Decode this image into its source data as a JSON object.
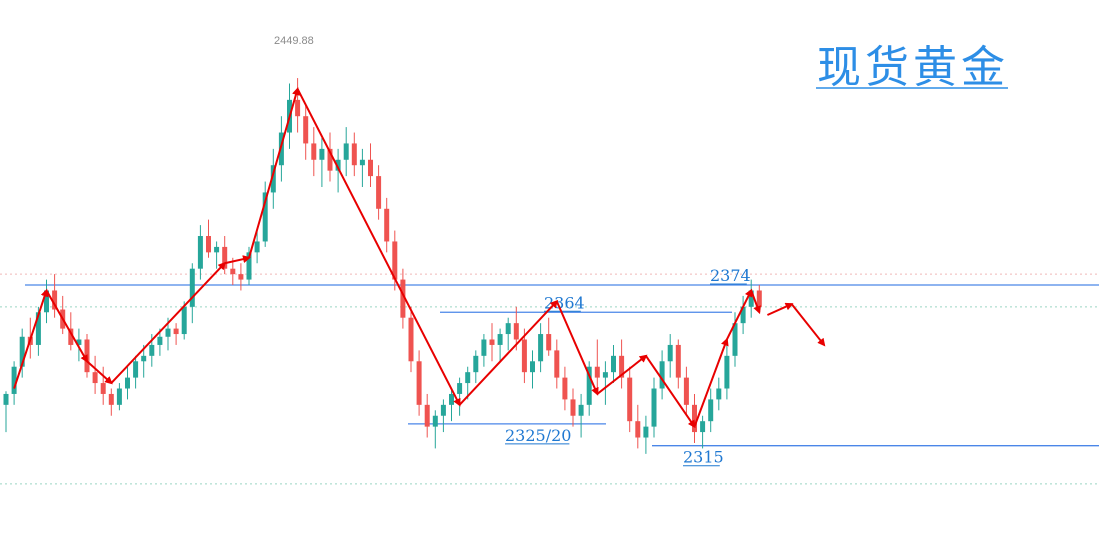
{
  "chart_data": {
    "type": "candlestick",
    "title": "现货黄金",
    "peak_label": "2449.88",
    "ylim": [
      2280,
      2475
    ],
    "colors": {
      "up": "#26a69a",
      "down": "#ef5350",
      "level_line": "#4a86e8",
      "level_text": "#1f78d1",
      "arrow": "#e80000",
      "title": "#2d8ee6",
      "grid_dotted": "#9ad5c4",
      "grid_red_dotted": "#f0b8b8"
    },
    "levels": [
      {
        "label": "2374",
        "value": 2374
      },
      {
        "label": "2364",
        "value": 2364
      },
      {
        "label": "2325/20",
        "value": 2323
      },
      {
        "label": "2315",
        "value": 2315
      }
    ],
    "dotted_lines": [
      2378,
      2366,
      2301
    ],
    "candles": [
      [
        2330,
        2335,
        2320,
        2334
      ],
      [
        2334,
        2346,
        2330,
        2344
      ],
      [
        2344,
        2358,
        2340,
        2355
      ],
      [
        2355,
        2362,
        2347,
        2352
      ],
      [
        2352,
        2366,
        2348,
        2364
      ],
      [
        2364,
        2376,
        2360,
        2372
      ],
      [
        2372,
        2378,
        2362,
        2365
      ],
      [
        2365,
        2370,
        2356,
        2358
      ],
      [
        2358,
        2364,
        2350,
        2352
      ],
      [
        2352,
        2358,
        2346,
        2354
      ],
      [
        2354,
        2356,
        2340,
        2342
      ],
      [
        2342,
        2348,
        2334,
        2338
      ],
      [
        2338,
        2344,
        2330,
        2334
      ],
      [
        2334,
        2336,
        2326,
        2330
      ],
      [
        2330,
        2338,
        2328,
        2336
      ],
      [
        2336,
        2344,
        2332,
        2340
      ],
      [
        2340,
        2348,
        2336,
        2346
      ],
      [
        2346,
        2352,
        2340,
        2348
      ],
      [
        2348,
        2356,
        2344,
        2352
      ],
      [
        2352,
        2358,
        2348,
        2355
      ],
      [
        2355,
        2362,
        2350,
        2358
      ],
      [
        2358,
        2360,
        2352,
        2356
      ],
      [
        2356,
        2368,
        2354,
        2366
      ],
      [
        2366,
        2382,
        2360,
        2380
      ],
      [
        2380,
        2396,
        2376,
        2392
      ],
      [
        2392,
        2398,
        2384,
        2386
      ],
      [
        2386,
        2390,
        2380,
        2388
      ],
      [
        2388,
        2392,
        2378,
        2380
      ],
      [
        2380,
        2384,
        2374,
        2378
      ],
      [
        2378,
        2382,
        2372,
        2376
      ],
      [
        2376,
        2388,
        2374,
        2386
      ],
      [
        2386,
        2394,
        2382,
        2390
      ],
      [
        2390,
        2412,
        2388,
        2408
      ],
      [
        2408,
        2424,
        2402,
        2418
      ],
      [
        2418,
        2436,
        2412,
        2430
      ],
      [
        2430,
        2448,
        2424,
        2442
      ],
      [
        2442,
        2450,
        2430,
        2436
      ],
      [
        2436,
        2440,
        2420,
        2426
      ],
      [
        2426,
        2432,
        2414,
        2420
      ],
      [
        2420,
        2428,
        2410,
        2424
      ],
      [
        2424,
        2430,
        2412,
        2416
      ],
      [
        2416,
        2424,
        2408,
        2420
      ],
      [
        2420,
        2432,
        2414,
        2426
      ],
      [
        2426,
        2430,
        2414,
        2418
      ],
      [
        2418,
        2424,
        2410,
        2420
      ],
      [
        2420,
        2426,
        2410,
        2414
      ],
      [
        2414,
        2418,
        2398,
        2402
      ],
      [
        2402,
        2406,
        2386,
        2390
      ],
      [
        2390,
        2394,
        2372,
        2376
      ],
      [
        2376,
        2380,
        2358,
        2362
      ],
      [
        2362,
        2366,
        2342,
        2346
      ],
      [
        2346,
        2350,
        2326,
        2330
      ],
      [
        2330,
        2334,
        2318,
        2322
      ],
      [
        2322,
        2328,
        2314,
        2326
      ],
      [
        2326,
        2332,
        2320,
        2330
      ],
      [
        2330,
        2336,
        2324,
        2334
      ],
      [
        2334,
        2340,
        2326,
        2338
      ],
      [
        2338,
        2344,
        2332,
        2342
      ],
      [
        2342,
        2350,
        2338,
        2348
      ],
      [
        2348,
        2356,
        2344,
        2354
      ],
      [
        2354,
        2360,
        2346,
        2352
      ],
      [
        2352,
        2358,
        2346,
        2356
      ],
      [
        2356,
        2362,
        2350,
        2360
      ],
      [
        2360,
        2366,
        2350,
        2354
      ],
      [
        2354,
        2358,
        2338,
        2342
      ],
      [
        2342,
        2350,
        2336,
        2346
      ],
      [
        2346,
        2360,
        2342,
        2356
      ],
      [
        2356,
        2362,
        2348,
        2350
      ],
      [
        2350,
        2354,
        2336,
        2340
      ],
      [
        2340,
        2344,
        2328,
        2332
      ],
      [
        2332,
        2336,
        2322,
        2326
      ],
      [
        2326,
        2334,
        2318,
        2330
      ],
      [
        2330,
        2346,
        2326,
        2344
      ],
      [
        2344,
        2354,
        2336,
        2340
      ],
      [
        2340,
        2346,
        2330,
        2342
      ],
      [
        2342,
        2352,
        2338,
        2348
      ],
      [
        2348,
        2354,
        2336,
        2340
      ],
      [
        2340,
        2344,
        2320,
        2324
      ],
      [
        2324,
        2330,
        2314,
        2318
      ],
      [
        2318,
        2326,
        2312,
        2322
      ],
      [
        2322,
        2340,
        2318,
        2336
      ],
      [
        2336,
        2350,
        2332,
        2346
      ],
      [
        2346,
        2356,
        2340,
        2352
      ],
      [
        2352,
        2354,
        2336,
        2340
      ],
      [
        2340,
        2344,
        2326,
        2330
      ],
      [
        2330,
        2334,
        2316,
        2320
      ],
      [
        2320,
        2326,
        2314,
        2324
      ],
      [
        2324,
        2336,
        2320,
        2332
      ],
      [
        2332,
        2340,
        2328,
        2336
      ],
      [
        2336,
        2352,
        2332,
        2348
      ],
      [
        2348,
        2364,
        2344,
        2360
      ],
      [
        2360,
        2370,
        2356,
        2366
      ],
      [
        2366,
        2376,
        2362,
        2372
      ],
      [
        2372,
        2374,
        2364,
        2366
      ]
    ],
    "wave_arrows": [
      [
        [
          1,
          2336
        ],
        [
          5,
          2372
        ],
        [
          10,
          2346
        ],
        [
          13,
          2338
        ],
        [
          27,
          2382
        ],
        [
          30,
          2384
        ],
        [
          36,
          2446
        ],
        [
          56,
          2330
        ],
        [
          68,
          2368
        ],
        [
          73,
          2334
        ],
        [
          79,
          2348
        ],
        [
          85,
          2322
        ],
        [
          89,
          2354
        ],
        [
          92,
          2372
        ],
        [
          93,
          2364
        ]
      ],
      [
        [
          94,
          2363
        ],
        [
          97,
          2367
        ],
        [
          101,
          2352
        ]
      ]
    ]
  }
}
